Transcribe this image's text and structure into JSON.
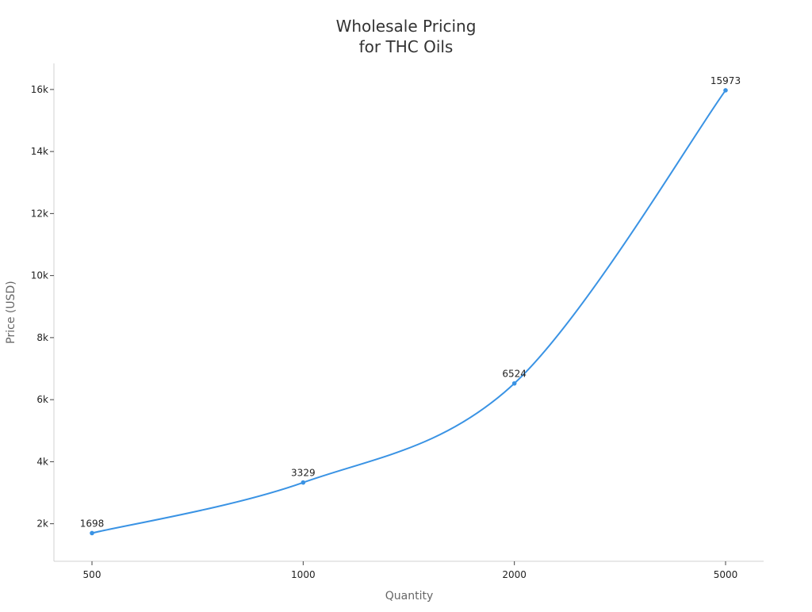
{
  "chart_data": {
    "type": "line",
    "title_lines": [
      "Wholesale Pricing",
      "for THC Oils"
    ],
    "xlabel": "Quantity",
    "ylabel": "Price (USD)",
    "categories": [
      "500",
      "1000",
      "2000",
      "5000"
    ],
    "series": [
      {
        "name": "Price",
        "values": [
          1698,
          3329,
          6524,
          15973
        ],
        "data_labels": [
          "1698",
          "3329",
          "6524",
          "15973"
        ]
      }
    ],
    "yticks": [
      2000,
      4000,
      6000,
      8000,
      10000,
      12000,
      14000,
      16000
    ],
    "ytick_labels": [
      "2k",
      "4k",
      "6k",
      "8k",
      "10k",
      "12k",
      "14k",
      "16k"
    ],
    "ylim": [
      790,
      16840
    ],
    "grid": false,
    "legend": "none",
    "colors": {
      "line": "#3a93e4",
      "axis": "#d0d0d0",
      "text": "#222222",
      "label": "#666666"
    }
  }
}
